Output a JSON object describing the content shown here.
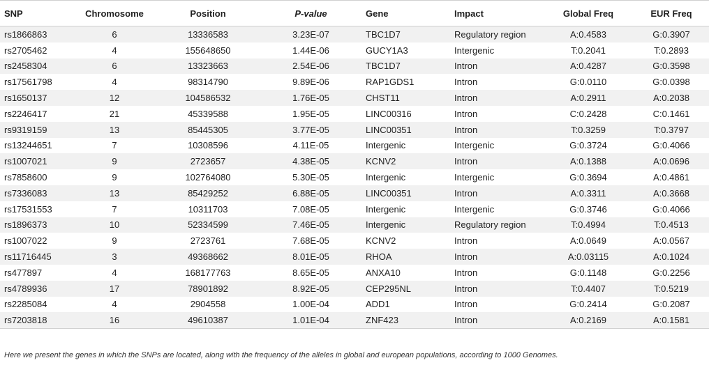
{
  "table": {
    "headers": [
      "SNP",
      "Chromosome",
      "Position",
      "P-value",
      "Gene",
      "Impact",
      "Global Freq",
      "EUR Freq"
    ],
    "rows": [
      [
        "rs1866863",
        "6",
        "13336583",
        "3.23E-07",
        "TBC1D7",
        "Regulatory region",
        "A:0.4583",
        "G:0.3907"
      ],
      [
        "rs2705462",
        "4",
        "155648650",
        "1.44E-06",
        "GUCY1A3",
        "Intergenic",
        "T:0.2041",
        "T:0.2893"
      ],
      [
        "rs2458304",
        "6",
        "13323663",
        "2.54E-06",
        "TBC1D7",
        "Intron",
        "A:0.4287",
        "G:0.3598"
      ],
      [
        "rs17561798",
        "4",
        "98314790",
        "9.89E-06",
        "RAP1GDS1",
        "Intron",
        "G:0.0110",
        "G:0.0398"
      ],
      [
        "rs1650137",
        "12",
        "104586532",
        "1.76E-05",
        "CHST11",
        "Intron",
        "A:0.2911",
        "A:0.2038"
      ],
      [
        "rs2246417",
        "21",
        "45339588",
        "1.95E-05",
        "LINC00316",
        "Intron",
        "C:0.2428",
        "C:0.1461"
      ],
      [
        "rs9319159",
        "13",
        "85445305",
        "3.77E-05",
        "LINC00351",
        "Intron",
        "T:0.3259",
        "T:0.3797"
      ],
      [
        "rs13244651",
        "7",
        "10308596",
        "4.11E-05",
        "Intergenic",
        "Intergenic",
        "G:0.3724",
        "G:0.4066"
      ],
      [
        "rs1007021",
        "9",
        "2723657",
        "4.38E-05",
        "KCNV2",
        "Intron",
        "A:0.1388",
        "A:0.0696"
      ],
      [
        "rs7858600",
        "9",
        "102764080",
        "5.30E-05",
        "Intergenic",
        "Intergenic",
        "G:0.3694",
        "A:0.4861"
      ],
      [
        "rs7336083",
        "13",
        "85429252",
        "6.88E-05",
        "LINC00351",
        "Intron",
        "A:0.3311",
        "A:0.3668"
      ],
      [
        "rs17531553",
        "7",
        "10311703",
        "7.08E-05",
        "Intergenic",
        "Intergenic",
        "G:0.3746",
        "G:0.4066"
      ],
      [
        "rs1896373",
        "10",
        "52334599",
        "7.46E-05",
        "Intergenic",
        "Regulatory region",
        "T:0.4994",
        "T:0.4513"
      ],
      [
        "rs1007022",
        "9",
        "2723761",
        "7.68E-05",
        "KCNV2",
        "Intron",
        "A:0.0649",
        "A:0.0567"
      ],
      [
        "rs11716445",
        "3",
        "49368662",
        "8.01E-05",
        "RHOA",
        "Intron",
        "A:0.03115",
        "A:0.1024"
      ],
      [
        "rs477897",
        "4",
        "168177763",
        "8.65E-05",
        "ANXA10",
        "Intron",
        "G:0.1148",
        "G:0.2256"
      ],
      [
        "rs4789936",
        "17",
        "78901892",
        "8.92E-05",
        "CEP295NL",
        "Intron",
        "T:0.4407",
        "T:0.5219"
      ],
      [
        "rs2285084",
        "4",
        "2904558",
        "1.00E-04",
        "ADD1",
        "Intron",
        "G:0.2414",
        "G:0.2087"
      ],
      [
        "rs7203818",
        "16",
        "49610387",
        "1.01E-04",
        "ZNF423",
        "Intron",
        "A:0.2169",
        "A:0.1581"
      ]
    ]
  },
  "footnote": "Here we present the genes in which the SNPs are located, along with the frequency of the alleles in global and european populations, according to 1000 Genomes."
}
